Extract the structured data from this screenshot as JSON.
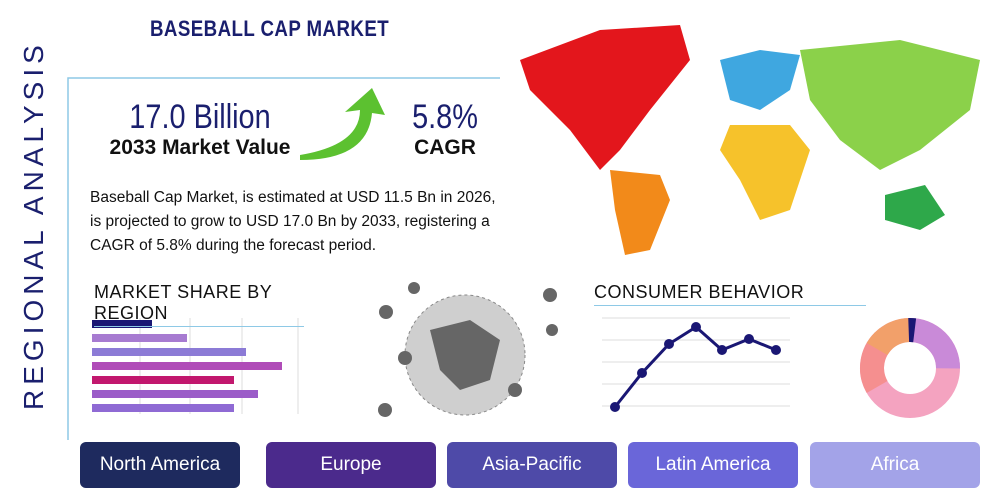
{
  "header": {
    "title": "BASEBALL CAP MARKET"
  },
  "side_label": "REGIONAL ANALYSIS",
  "stats": [
    {
      "value": "17.0 Billion",
      "label": "2033 Market Value"
    },
    {
      "value": "5.8%",
      "label": "CAGR"
    }
  ],
  "description": "Baseball Cap Market, is estimated at USD 11.5 Bn in 2026, is projected to grow to USD 17.0 Bn by 2033, registering a CAGR of 5.8% during the forecast period.",
  "sections": {
    "market_share": "MARKET SHARE BY REGION",
    "consumer_behavior": "CONSUMER BEHAVIOR"
  },
  "regions": [
    "North America",
    "Europe",
    "Asia-Pacific",
    "Latin America",
    "Africa"
  ]
}
